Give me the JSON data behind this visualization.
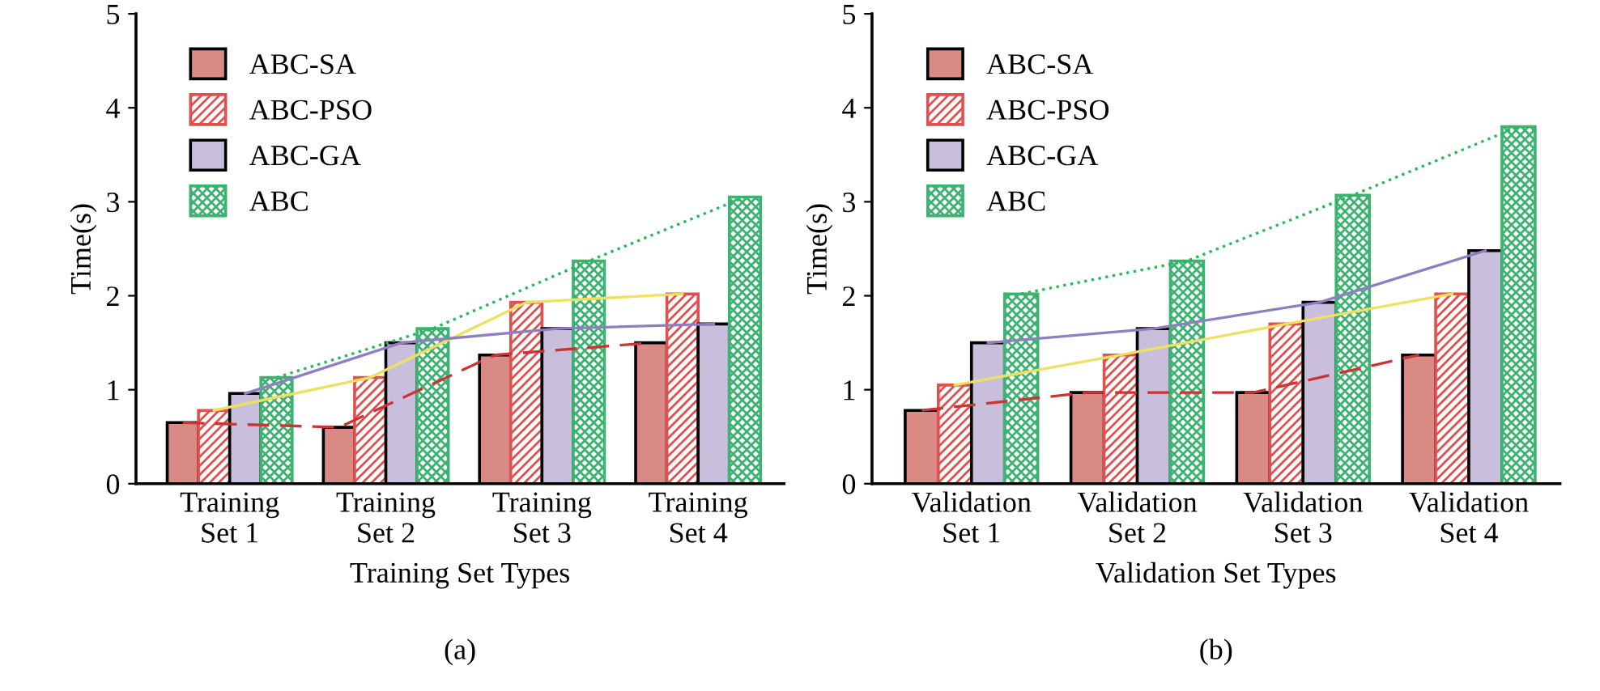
{
  "chart_data": [
    {
      "type": "bar",
      "xlabel": "Training Set Types",
      "ylabel": "Time(s)",
      "annotations": [
        "(a)"
      ],
      "categories": [
        "Training\nSet 1",
        "Training\nSet 2",
        "Training\nSet 3",
        "Training\nSet 4"
      ],
      "ylim": [
        0,
        5
      ],
      "yticks": [
        0,
        1,
        2,
        3,
        4,
        5
      ],
      "grid": false,
      "legend": "top left",
      "series": [
        {
          "name": "ABC-SA",
          "color": "#d98a85",
          "values": [
            0.65,
            0.6,
            1.37,
            1.5
          ]
        },
        {
          "name": "ABC-PSO",
          "color": "#e05050",
          "values": [
            0.78,
            1.13,
            1.93,
            2.02
          ]
        },
        {
          "name": "ABC-GA",
          "color": "#c9bfdc",
          "values": [
            0.96,
            1.5,
            1.65,
            1.7
          ]
        },
        {
          "name": "ABC",
          "color": "#3cb371",
          "values": [
            1.13,
            1.65,
            2.37,
            3.05
          ]
        },
        {
          "type": "line",
          "color": "#cc3333",
          "line_style": "dashed",
          "values": [
            0.65,
            0.6,
            1.37,
            1.5
          ]
        },
        {
          "type": "line",
          "color": "#f0e060",
          "line_style": "solid",
          "values": [
            0.78,
            1.13,
            1.93,
            2.02
          ]
        },
        {
          "type": "line",
          "color": "#8f7fc0",
          "line_style": "solid",
          "values": [
            0.96,
            1.5,
            1.65,
            1.7
          ]
        },
        {
          "type": "line",
          "color": "#22bb55",
          "line_style": "dotted",
          "values": [
            1.13,
            1.65,
            2.37,
            3.05
          ]
        }
      ]
    },
    {
      "type": "bar",
      "xlabel": "Validation Set Types",
      "ylabel": "Time(s)",
      "annotations": [
        "(b)"
      ],
      "categories": [
        "Validation\nSet 1",
        "Validation\nSet 2",
        "Validation\nSet 3",
        "Validation\nSet 4"
      ],
      "ylim": [
        0,
        5
      ],
      "yticks": [
        0,
        1,
        2,
        3,
        4,
        5
      ],
      "grid": false,
      "legend": "top left",
      "series": [
        {
          "name": "ABC-SA",
          "color": "#d98a85",
          "values": [
            0.78,
            0.97,
            0.97,
            1.37
          ]
        },
        {
          "name": "ABC-PSO",
          "color": "#e05050",
          "values": [
            1.05,
            1.37,
            1.7,
            2.02
          ]
        },
        {
          "name": "ABC-GA",
          "color": "#c9bfdc",
          "values": [
            1.5,
            1.65,
            1.93,
            2.48
          ]
        },
        {
          "name": "ABC",
          "color": "#3cb371",
          "values": [
            2.02,
            2.37,
            3.07,
            3.8
          ]
        },
        {
          "type": "line",
          "color": "#cc3333",
          "line_style": "dashed",
          "values": [
            0.78,
            0.97,
            0.97,
            1.37
          ]
        },
        {
          "type": "line",
          "color": "#f0e060",
          "line_style": "solid",
          "values": [
            1.05,
            1.37,
            1.7,
            2.02
          ]
        },
        {
          "type": "line",
          "color": "#8f7fc0",
          "line_style": "solid",
          "values": [
            1.5,
            1.65,
            1.93,
            2.48
          ]
        },
        {
          "type": "line",
          "color": "#22bb55",
          "line_style": "dotted",
          "values": [
            2.02,
            2.37,
            3.07,
            3.8
          ]
        }
      ]
    }
  ]
}
